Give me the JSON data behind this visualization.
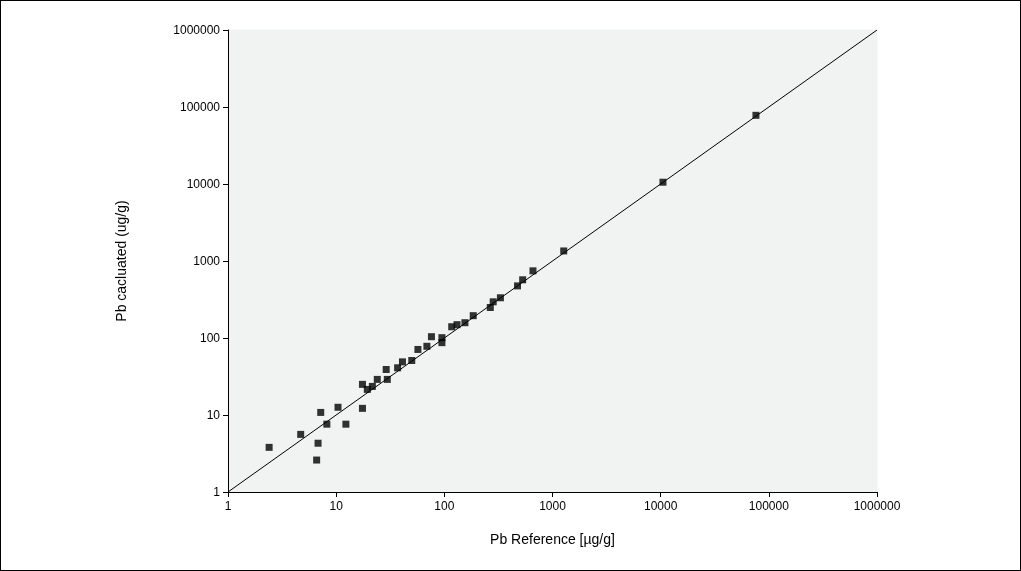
{
  "chart_data": {
    "type": "scatter",
    "xlabel": "Pb Reference [µg/g]",
    "ylabel": "Pb cacluated (ug/g)",
    "log": "xy",
    "grid": false,
    "marker": "square",
    "xlim": [
      1,
      1000000
    ],
    "ylim": [
      1,
      1000000
    ],
    "xticks": [
      1,
      10,
      100,
      1000,
      10000,
      100000,
      1000000
    ],
    "yticks": [
      1,
      10,
      100,
      1000,
      10000,
      100000,
      1000000
    ],
    "series": [
      {
        "color": "#000000",
        "x": [
          2.4,
          4.7,
          6.8,
          6.6,
          7.2,
          8.2,
          10.4,
          12.3,
          17.5,
          17.5,
          19.4,
          21.6,
          24,
          29,
          29.7,
          37,
          41,
          50,
          57,
          69,
          76,
          95,
          95,
          117,
          131,
          155,
          185,
          266,
          283,
          330,
          475,
          530,
          660,
          1270,
          10500,
          76000
        ],
        "values": [
          3.8,
          5.6,
          4.3,
          2.6,
          10.8,
          7.6,
          12.6,
          7.6,
          12.2,
          25,
          21.5,
          23.5,
          29,
          39,
          29,
          41,
          49,
          51,
          71,
          78,
          104,
          101,
          87,
          140,
          149,
          158,
          195,
          249,
          295,
          333,
          475,
          570,
          745,
          1350,
          10550,
          78000
        ]
      },
      {
        "type": "line",
        "marker": "none",
        "color": "#000000",
        "x": [
          1,
          1000000
        ],
        "values": [
          1,
          1000000
        ]
      }
    ]
  }
}
